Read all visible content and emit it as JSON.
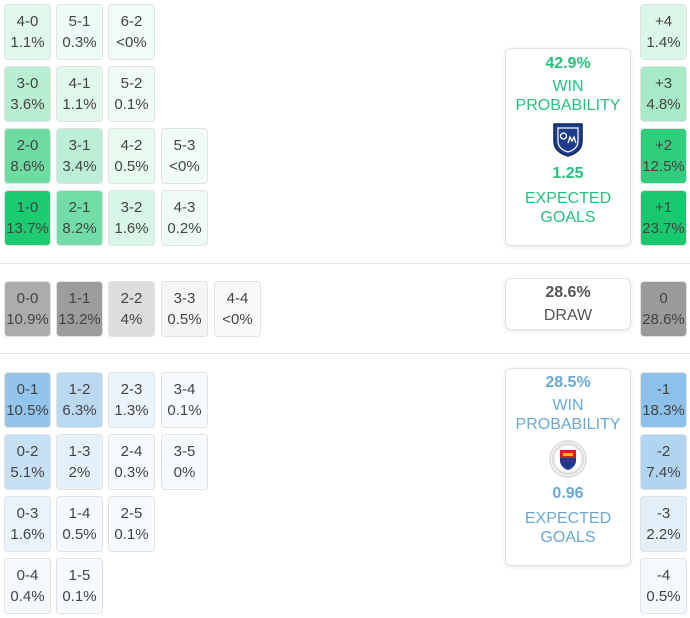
{
  "home": {
    "win_pct": "42.9%",
    "win_label_1": "WIN",
    "win_label_2": "PROBABILITY",
    "xg": "1.25",
    "xg_label_1": "EXPECTED",
    "xg_label_2": "GOALS",
    "logo_icon": "millonarios-crest-icon",
    "color": "#27c07c"
  },
  "draw": {
    "pct": "28.6%",
    "label": "DRAW"
  },
  "away": {
    "win_pct": "28.5%",
    "win_label_1": "WIN",
    "win_label_2": "PROBABILITY",
    "xg": "0.96",
    "xg_label_1": "EXPECTED",
    "xg_label_2": "GOALS",
    "logo_icon": "deportivo-pasto-crest-icon",
    "color": "#6aa8d4"
  },
  "home_scores": [
    [
      {
        "s": "4-0",
        "p": "1.1%"
      },
      {
        "s": "5-1",
        "p": "0.3%"
      },
      {
        "s": "6-2",
        "p": "<0%"
      }
    ],
    [
      {
        "s": "3-0",
        "p": "3.6%"
      },
      {
        "s": "4-1",
        "p": "1.1%"
      },
      {
        "s": "5-2",
        "p": "0.1%"
      }
    ],
    [
      {
        "s": "2-0",
        "p": "8.6%"
      },
      {
        "s": "3-1",
        "p": "3.4%"
      },
      {
        "s": "4-2",
        "p": "0.5%"
      },
      {
        "s": "5-3",
        "p": "<0%"
      }
    ],
    [
      {
        "s": "1-0",
        "p": "13.7%"
      },
      {
        "s": "2-1",
        "p": "8.2%"
      },
      {
        "s": "3-2",
        "p": "1.6%"
      },
      {
        "s": "4-3",
        "p": "0.2%"
      }
    ]
  ],
  "draw_scores": [
    {
      "s": "0-0",
      "p": "10.9%"
    },
    {
      "s": "1-1",
      "p": "13.2%"
    },
    {
      "s": "2-2",
      "p": "4%"
    },
    {
      "s": "3-3",
      "p": "0.5%"
    },
    {
      "s": "4-4",
      "p": "<0%"
    }
  ],
  "away_scores": [
    [
      {
        "s": "0-1",
        "p": "10.5%"
      },
      {
        "s": "1-2",
        "p": "6.3%"
      },
      {
        "s": "2-3",
        "p": "1.3%"
      },
      {
        "s": "3-4",
        "p": "0.1%"
      }
    ],
    [
      {
        "s": "0-2",
        "p": "5.1%"
      },
      {
        "s": "1-3",
        "p": "2%"
      },
      {
        "s": "2-4",
        "p": "0.3%"
      },
      {
        "s": "3-5",
        "p": "0%"
      }
    ],
    [
      {
        "s": "0-3",
        "p": "1.6%"
      },
      {
        "s": "1-4",
        "p": "0.5%"
      },
      {
        "s": "2-5",
        "p": "0.1%"
      }
    ],
    [
      {
        "s": "0-4",
        "p": "0.4%"
      },
      {
        "s": "1-5",
        "p": "0.1%"
      }
    ]
  ],
  "margins": [
    {
      "s": "+4",
      "p": "1.4%"
    },
    {
      "s": "+3",
      "p": "4.8%"
    },
    {
      "s": "+2",
      "p": "12.5%"
    },
    {
      "s": "+1",
      "p": "23.7%"
    },
    {
      "s": "0",
      "p": "28.6%"
    },
    {
      "s": "-1",
      "p": "18.3%"
    },
    {
      "s": "-2",
      "p": "7.4%"
    },
    {
      "s": "-3",
      "p": "2.2%"
    },
    {
      "s": "-4",
      "p": "0.5%"
    }
  ]
}
